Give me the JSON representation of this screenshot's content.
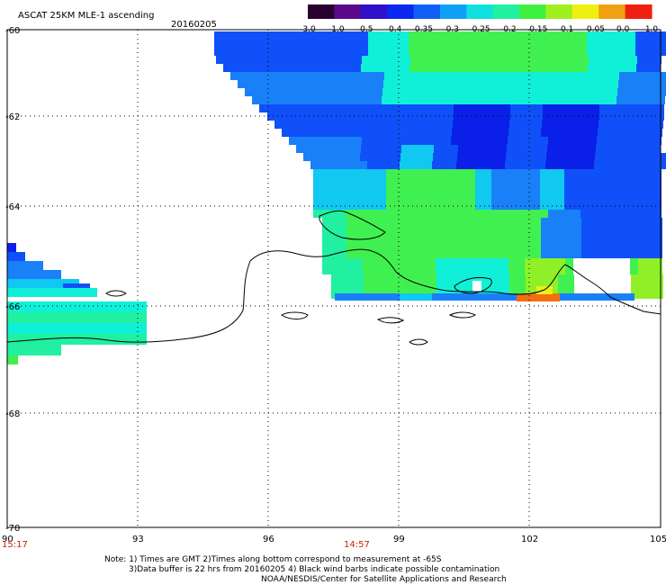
{
  "title": "ASCAT 25KM MLE-1 ascending",
  "date": "20160205",
  "colorbar": {
    "tick_labels": [
      "-3.0",
      "-1.0",
      "-0.5",
      "-0.4",
      "-0.35",
      "-0.3",
      "-0.25",
      "-0.2",
      "-0.15",
      "-0.1",
      "-0.05",
      "0.0",
      "1.0"
    ],
    "colors": [
      "#2a0030",
      "#5a0a8a",
      "#3010c8",
      "#0a28f0",
      "#1060f8",
      "#10a0f8",
      "#10e0e0",
      "#20f0a0",
      "#40f040",
      "#a0f020",
      "#f0f010",
      "#f0a010",
      "#f02010"
    ]
  },
  "axes": {
    "lat_labels": [
      "-60",
      "-62",
      "-64",
      "-66",
      "-68",
      "-70"
    ],
    "lon_labels": [
      "90",
      "93",
      "96",
      "99",
      "102",
      "105"
    ]
  },
  "time_labels": [
    "15:17",
    "14:57"
  ],
  "notes": [
    "Note: 1) Times are GMT 2)Times along bottom correspond to measurement at -65S",
    "3)Data buffer is 22 hrs from 20160205 4) Black wind barbs indicate possible contamination",
    "NOAA/NESDIS/Center for Satellite Applications and Research"
  ],
  "palette": {
    "deep_blue": "#0a20e8",
    "blue": "#1050f8",
    "mid_blue": "#1a80f8",
    "cyan": "#10c8f0",
    "aqua": "#10f0d8",
    "teal_green": "#20f0a0",
    "green": "#40f050",
    "lime": "#90f028",
    "yellow": "#e8f018",
    "orange": "#f07010",
    "red": "#f03010"
  }
}
